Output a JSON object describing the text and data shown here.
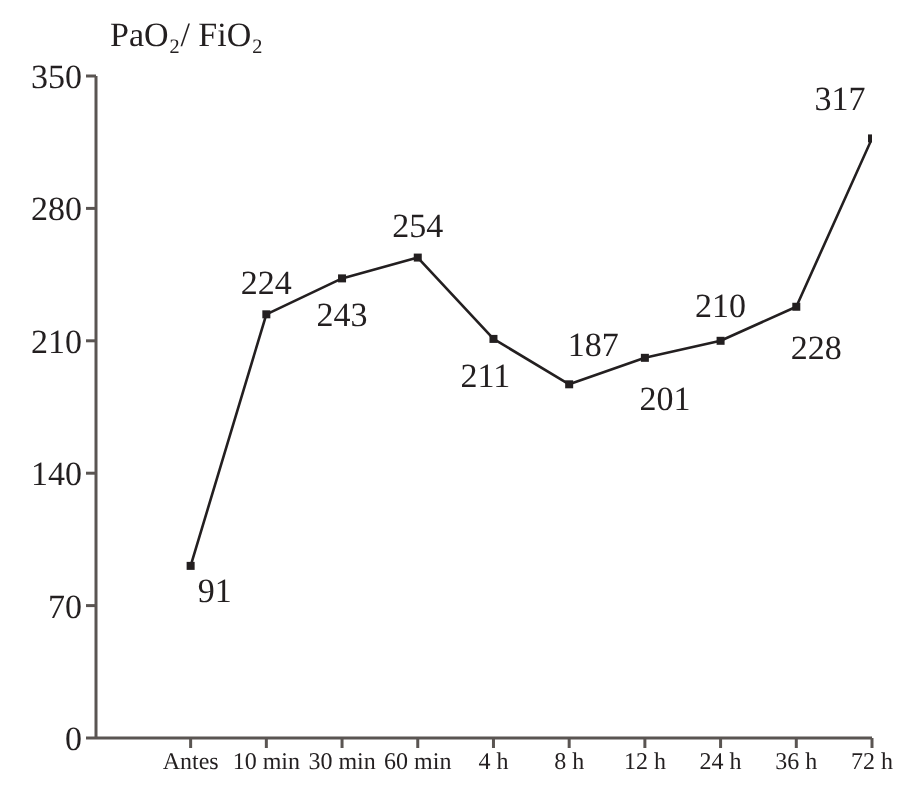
{
  "chart_data": {
    "type": "line",
    "ylabel": "PaO₂/ FiO₂",
    "categories": [
      "Antes",
      "10 min",
      "30 min",
      "60 min",
      "4 h",
      "8 h",
      "12 h",
      "24 h",
      "36 h",
      "72 h"
    ],
    "series": [
      {
        "color": "#231f20",
        "values": [
          91,
          224,
          243,
          254,
          211,
          187,
          201,
          210,
          228,
          317
        ]
      }
    ],
    "data_labels": true,
    "ylim": [
      0,
      350
    ],
    "yticks": [
      0,
      70,
      140,
      210,
      280,
      350
    ],
    "grid": false,
    "legend": false,
    "marker": "square",
    "line_style": "solid"
  }
}
